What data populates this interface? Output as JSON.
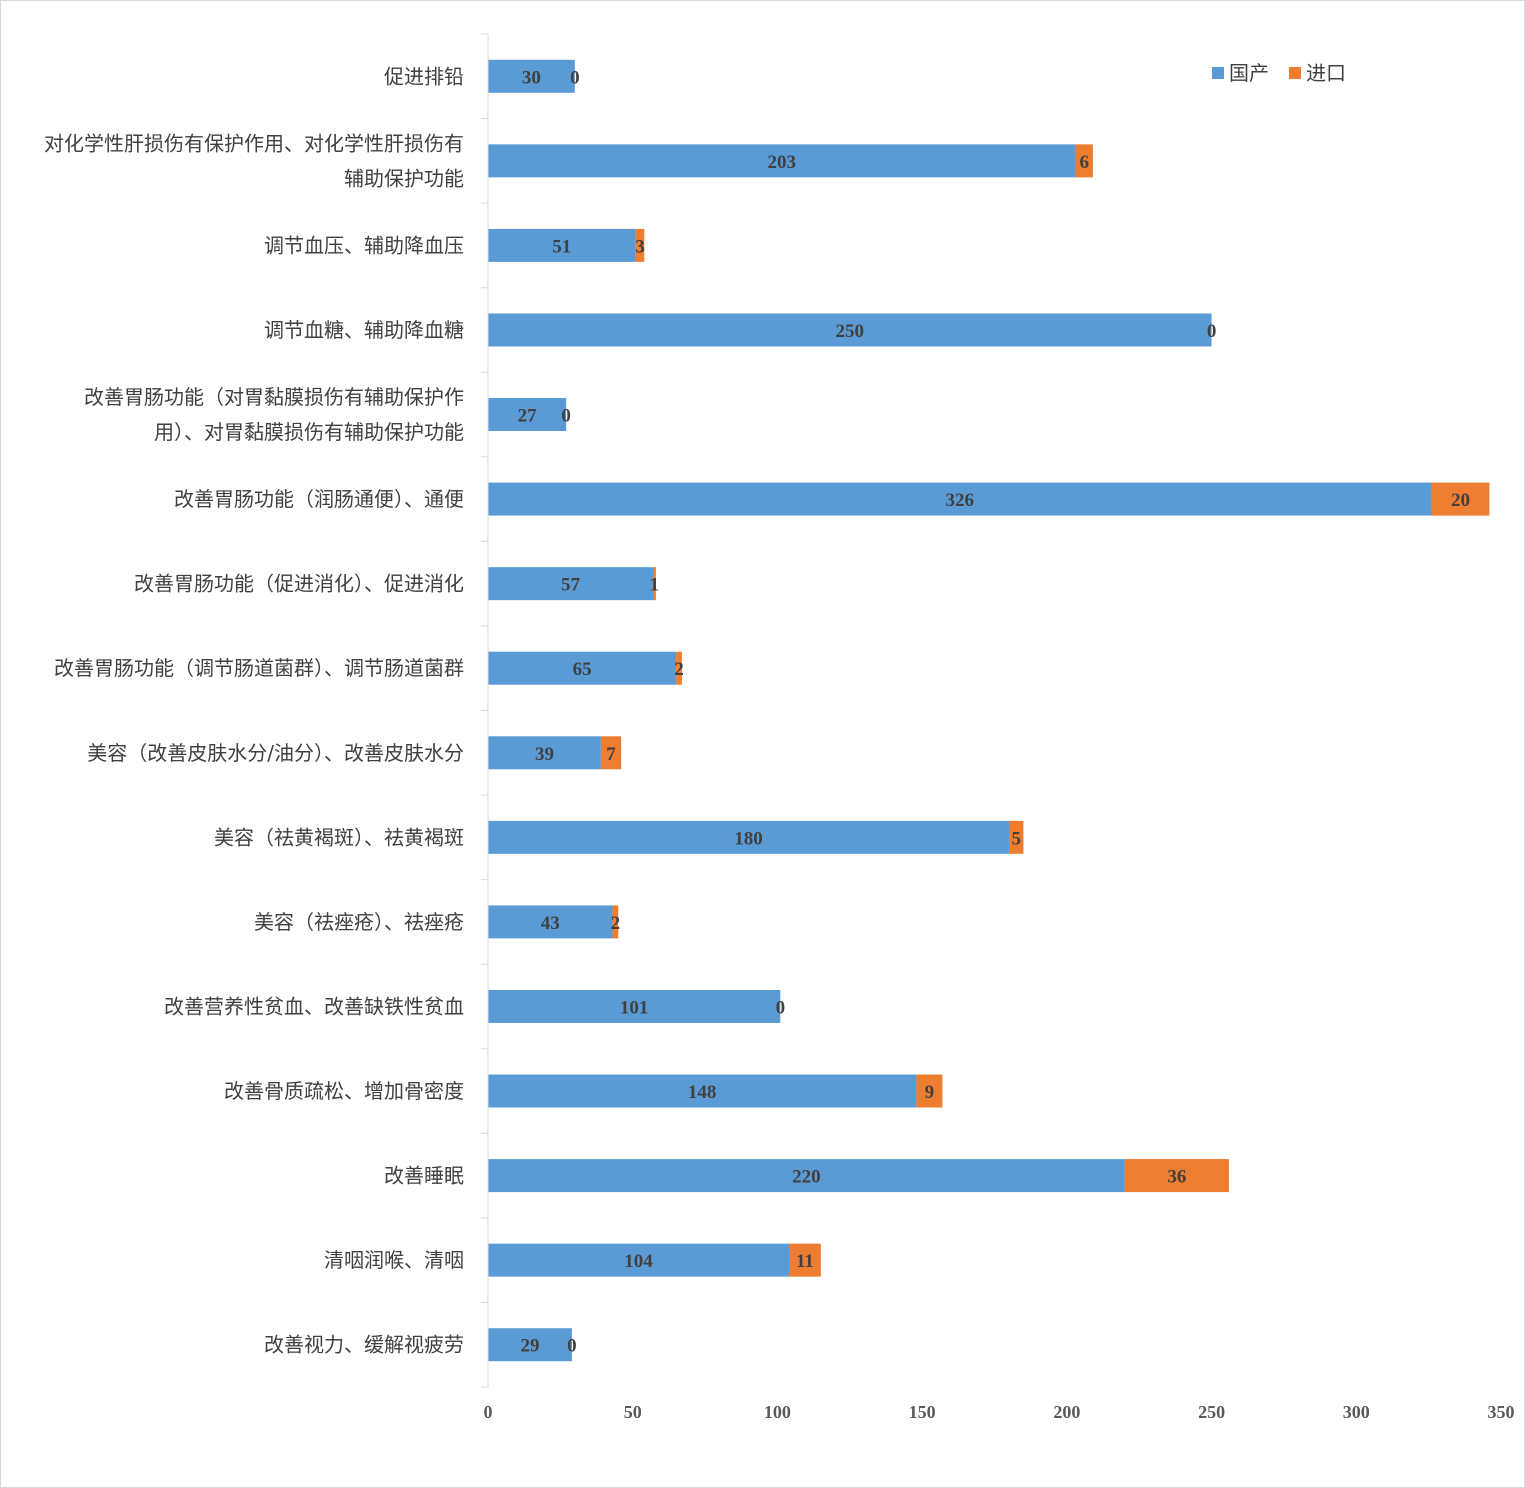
{
  "chart_data": {
    "type": "bar",
    "orientation": "horizontal",
    "stacked": true,
    "categories": [
      "促进排铅",
      "对化学性肝损伤有保护作用、对化学性肝损伤有辅助保护功能",
      "调节血压、辅助降血压",
      "调节血糖、辅助降血糖",
      "改善胃肠功能（对胃黏膜损伤有辅助保护作用）、对胃黏膜损伤有辅助保护功能",
      "改善胃肠功能（润肠通便）、通便",
      "改善胃肠功能（促进消化）、促进消化",
      "改善胃肠功能（调节肠道菌群）、调节肠道菌群",
      "美容（改善皮肤水分/油分）、改善皮肤水分",
      "美容（祛黄褐斑）、祛黄褐斑",
      "美容（祛痤疮）、祛痤疮",
      "改善营养性贫血、改善缺铁性贫血",
      "改善骨质疏松、增加骨密度",
      "改善睡眠",
      "清咽润喉、清咽",
      "改善视力、缓解视疲劳"
    ],
    "category_lines": [
      [
        "促进排铅"
      ],
      [
        "对化学性肝损伤有保护作用、对化学性肝损伤有",
        "辅助保护功能"
      ],
      [
        "调节血压、辅助降血压"
      ],
      [
        "调节血糖、辅助降血糖"
      ],
      [
        "改善胃肠功能（对胃黏膜损伤有辅助保护作",
        "用）、对胃黏膜损伤有辅助保护功能"
      ],
      [
        "改善胃肠功能（润肠通便）、通便"
      ],
      [
        "改善胃肠功能（促进消化）、促进消化"
      ],
      [
        "改善胃肠功能（调节肠道菌群）、调节肠道菌群"
      ],
      [
        "美容（改善皮肤水分/油分）、改善皮肤水分"
      ],
      [
        "美容（祛黄褐斑）、祛黄褐斑"
      ],
      [
        "美容（祛痤疮）、祛痤疮"
      ],
      [
        "改善营养性贫血、改善缺铁性贫血"
      ],
      [
        "改善骨质疏松、增加骨密度"
      ],
      [
        "改善睡眠"
      ],
      [
        "清咽润喉、清咽"
      ],
      [
        "改善视力、缓解视疲劳"
      ]
    ],
    "series": [
      {
        "name": "国产",
        "color": "#5B9BD5",
        "values": [
          30,
          203,
          51,
          250,
          27,
          326,
          57,
          65,
          39,
          180,
          43,
          101,
          148,
          220,
          104,
          29
        ]
      },
      {
        "name": "进口",
        "color": "#ED7D31",
        "values": [
          0,
          6,
          3,
          0,
          0,
          20,
          1,
          2,
          7,
          5,
          2,
          0,
          9,
          36,
          11,
          0
        ]
      }
    ],
    "xlim": [
      0,
      350
    ],
    "xticks": [
      0,
      50,
      100,
      150,
      200,
      250,
      300,
      350
    ],
    "xtick_labels": [
      "0",
      "50",
      "100",
      "150",
      "200",
      "250",
      "300",
      "350"
    ],
    "title": "",
    "xlabel": "",
    "ylabel": "",
    "grid": false,
    "legend_position": "top-right",
    "data_labels": true
  }
}
